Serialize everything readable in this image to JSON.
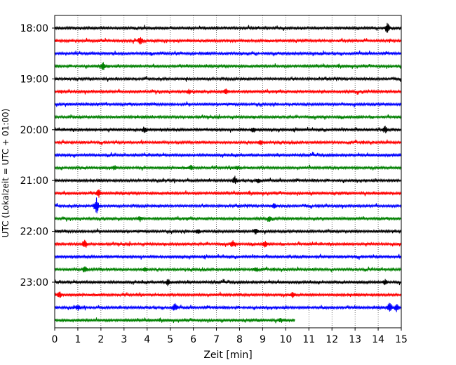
{
  "chart_data": {
    "type": "line",
    "title": "",
    "xlabel": "Zeit  [min]",
    "ylabel": "UTC (Lokalzeit = UTC + 01:00)",
    "xlim": [
      0,
      15
    ],
    "x_ticks": [
      "0",
      "1",
      "2",
      "3",
      "4",
      "5",
      "6",
      "7",
      "8",
      "9",
      "10",
      "11",
      "12",
      "13",
      "14",
      "15"
    ],
    "y_ticks": [
      {
        "label": "18:00",
        "row": 0
      },
      {
        "label": "19:00",
        "row": 4
      },
      {
        "label": "20:00",
        "row": 8
      },
      {
        "label": "21:00",
        "row": 12
      },
      {
        "label": "22:00",
        "row": 16
      },
      {
        "label": "23:00",
        "row": 20
      }
    ],
    "grid": "vertical dotted at each minute",
    "colors": [
      "#000000",
      "#ff0000",
      "#0000ff",
      "#008000"
    ],
    "series": [
      {
        "start": "18:00",
        "color": "#000000",
        "duration_min": 15,
        "events": [
          [
            14.4,
            8
          ]
        ]
      },
      {
        "start": "18:15",
        "color": "#ff0000",
        "duration_min": 15,
        "events": [
          [
            3.7,
            7
          ]
        ]
      },
      {
        "start": "18:30",
        "color": "#0000ff",
        "duration_min": 15,
        "events": []
      },
      {
        "start": "18:45",
        "color": "#008000",
        "duration_min": 15,
        "events": [
          [
            2.1,
            6
          ]
        ]
      },
      {
        "start": "19:00",
        "color": "#000000",
        "duration_min": 15,
        "events": []
      },
      {
        "start": "19:15",
        "color": "#ff0000",
        "duration_min": 15,
        "events": [
          [
            5.8,
            4
          ],
          [
            7.4,
            4
          ]
        ]
      },
      {
        "start": "19:30",
        "color": "#0000ff",
        "duration_min": 15,
        "events": []
      },
      {
        "start": "19:45",
        "color": "#008000",
        "duration_min": 15,
        "events": []
      },
      {
        "start": "20:00",
        "color": "#000000",
        "duration_min": 15,
        "events": [
          [
            3.9,
            5
          ],
          [
            8.6,
            5
          ],
          [
            14.3,
            5
          ]
        ]
      },
      {
        "start": "20:15",
        "color": "#ff0000",
        "duration_min": 15,
        "events": [
          [
            8.9,
            4
          ]
        ]
      },
      {
        "start": "20:30",
        "color": "#0000ff",
        "duration_min": 15,
        "events": []
      },
      {
        "start": "20:45",
        "color": "#008000",
        "duration_min": 15,
        "events": [
          [
            2.6,
            4
          ],
          [
            5.9,
            4
          ],
          [
            7.9,
            4
          ]
        ]
      },
      {
        "start": "21:00",
        "color": "#000000",
        "duration_min": 15,
        "events": [
          [
            7.8,
            6
          ],
          [
            8.8,
            4
          ]
        ]
      },
      {
        "start": "21:15",
        "color": "#ff0000",
        "duration_min": 15,
        "events": [
          [
            1.9,
            6
          ]
        ]
      },
      {
        "start": "21:30",
        "color": "#0000ff",
        "duration_min": 15,
        "events": [
          [
            1.8,
            12
          ],
          [
            9.5,
            4
          ]
        ]
      },
      {
        "start": "21:45",
        "color": "#008000",
        "duration_min": 15,
        "events": [
          [
            3.7,
            4
          ],
          [
            9.3,
            4
          ]
        ]
      },
      {
        "start": "22:00",
        "color": "#000000",
        "duration_min": 15,
        "events": [
          [
            6.2,
            4
          ],
          [
            8.7,
            5
          ]
        ]
      },
      {
        "start": "22:15",
        "color": "#ff0000",
        "duration_min": 15,
        "events": [
          [
            1.3,
            7
          ],
          [
            7.7,
            5
          ],
          [
            9.1,
            5
          ]
        ]
      },
      {
        "start": "22:30",
        "color": "#0000ff",
        "duration_min": 15,
        "events": []
      },
      {
        "start": "22:45",
        "color": "#008000",
        "duration_min": 15,
        "events": [
          [
            1.3,
            6
          ],
          [
            3.9,
            4
          ],
          [
            8.7,
            4
          ]
        ]
      },
      {
        "start": "23:00",
        "color": "#000000",
        "duration_min": 15,
        "events": [
          [
            4.9,
            5
          ],
          [
            14.3,
            4
          ]
        ]
      },
      {
        "start": "23:15",
        "color": "#ff0000",
        "duration_min": 15,
        "events": [
          [
            0.2,
            5
          ],
          [
            10.3,
            4
          ]
        ]
      },
      {
        "start": "23:30",
        "color": "#0000ff",
        "duration_min": 15,
        "events": [
          [
            5.2,
            6
          ],
          [
            14.5,
            7
          ],
          [
            14.8,
            6
          ],
          [
            1.0,
            4
          ]
        ]
      },
      {
        "start": "23:45",
        "color": "#008000",
        "duration_min": 10.4,
        "events": [
          [
            9.8,
            4
          ]
        ]
      }
    ]
  }
}
